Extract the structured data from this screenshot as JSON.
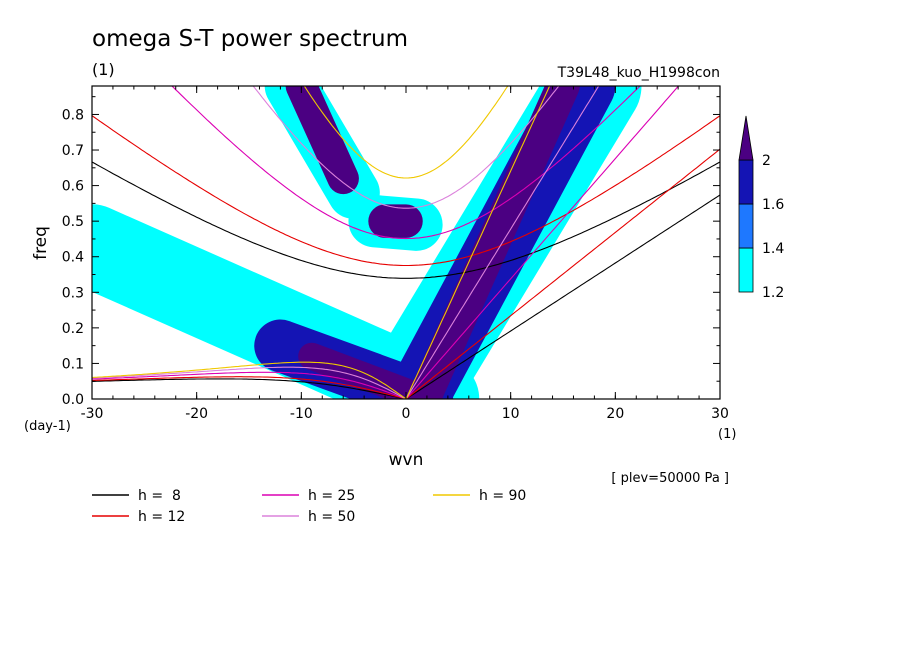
{
  "chart_data": {
    "type": "heatmap",
    "title": "omega S-T power spectrum",
    "subtitle": "(1)",
    "run_label": "T39L48_kuo_H1998con",
    "xlabel": "wvn",
    "ylabel": "freq",
    "x_unit_label": "(1)",
    "y_unit_label": "(day-1)",
    "plev_label": "[ plev=50000 Pa ]",
    "xlim": [
      -30,
      30
    ],
    "ylim": [
      0,
      0.88
    ],
    "x_ticks": [
      -30,
      -20,
      -10,
      0,
      10,
      20,
      30
    ],
    "x_tick_labels": [
      "-30",
      "-20",
      "-10",
      "0",
      "10",
      "20",
      "30"
    ],
    "y_ticks": [
      0,
      0.1,
      0.2,
      0.3,
      0.4,
      0.5,
      0.6,
      0.7,
      0.8
    ],
    "y_tick_labels": [
      "0.0",
      "0.1",
      "0.2",
      "0.3",
      "0.4",
      "0.5",
      "0.6",
      "0.7",
      "0.8"
    ],
    "colorbar": {
      "levels": [
        1.2,
        1.4,
        1.6,
        2
      ],
      "level_labels": [
        "1.2",
        "1.4",
        "1.6",
        "2"
      ],
      "colors": [
        "#00ffff",
        "#1e78ff",
        "#1414b4",
        "#4b0082"
      ]
    },
    "power_regions": [
      {
        "x0": 2,
        "y0": 0.02,
        "x1": 15,
        "y1": 0.88,
        "half_width": 1.6,
        "level": 2
      },
      {
        "x0": 1,
        "y0": 0.0,
        "x1": 17,
        "y1": 0.88,
        "half_width": 3.0,
        "level": 1.6
      },
      {
        "x0": 0,
        "y0": 0.0,
        "x1": 18,
        "y1": 0.88,
        "half_width": 4.5,
        "level": 1.2
      },
      {
        "x0": -9,
        "y0": 0.12,
        "x1": 0,
        "y1": 0.02,
        "half_width": 1.3,
        "level": 2
      },
      {
        "x0": -12,
        "y0": 0.15,
        "x1": 2,
        "y1": 0.0,
        "half_width": 2.5,
        "level": 1.6
      },
      {
        "x0": -30,
        "y0": 0.43,
        "x1": 3,
        "y1": 0.0,
        "half_width": 4.0,
        "level": 1.2
      },
      {
        "x0": -10,
        "y0": 0.88,
        "x1": -6,
        "y1": 0.62,
        "half_width": 1.5,
        "level": 2
      },
      {
        "x0": -11,
        "y0": 0.88,
        "x1": -5,
        "y1": 0.58,
        "half_width": 2.5,
        "level": 1.2
      },
      {
        "x0": -2,
        "y0": 0.5,
        "x1": 0,
        "y1": 0.5,
        "half_width": 1.6,
        "level": 2
      },
      {
        "x0": -3,
        "y0": 0.5,
        "x1": 1,
        "y1": 0.49,
        "half_width": 2.5,
        "level": 1.2
      }
    ],
    "dispersion_curves": [
      {
        "h": 8,
        "color": "#000000"
      },
      {
        "h": 12,
        "color": "#e60000"
      },
      {
        "h": 25,
        "color": "#dc00b4"
      },
      {
        "h": 50,
        "color": "#dc82dc"
      },
      {
        "h": 90,
        "color": "#f0c800"
      }
    ],
    "legend": {
      "placement": "bottom",
      "entries": [
        "h =  8",
        "h = 12",
        "h = 25",
        "h = 50",
        "h = 90"
      ]
    },
    "grid": false
  }
}
